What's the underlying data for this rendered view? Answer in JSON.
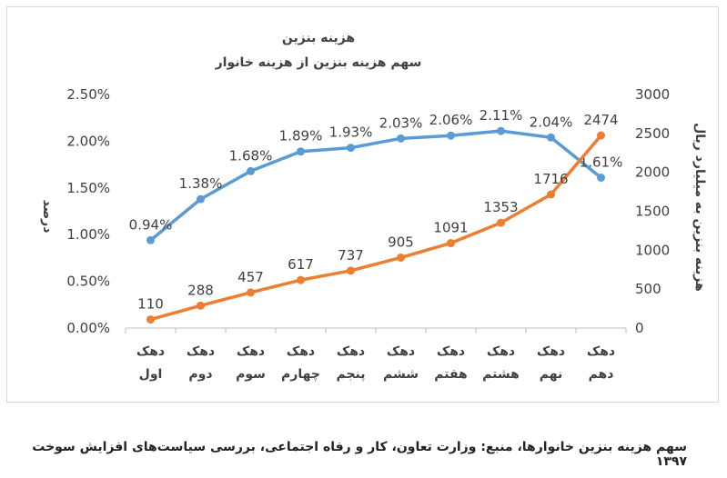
{
  "caption": "سهم هزینه بنزین خانوارها، منبع: وزارت تعاون، کار و رفاه اجتماعی، بررسی سیاست‌های افزایش سوخت ۱۳۹۷",
  "chart_data": {
    "type": "line",
    "title": "هزینه بنزین",
    "subtitle": "سهم هزینه بنزین از هزینه خانوار",
    "categories": [
      [
        "دهک",
        "اول"
      ],
      [
        "دهک",
        "دوم"
      ],
      [
        "دهک",
        "سوم"
      ],
      [
        "دهک",
        "چهارم"
      ],
      [
        "دهک",
        "پنجم"
      ],
      [
        "دهک",
        "ششم"
      ],
      [
        "دهک",
        "هفتم"
      ],
      [
        "دهک",
        "هشتم"
      ],
      [
        "دهک",
        "نهم"
      ],
      [
        "دهک",
        "دهم"
      ]
    ],
    "y_left": {
      "label": "درصد",
      "range": [
        0,
        0.025
      ],
      "ticks": [
        "0.00%",
        "0.50%",
        "1.00%",
        "1.50%",
        "2.00%",
        "2.50%"
      ],
      "tick_values": [
        0,
        0.005,
        0.01,
        0.015,
        0.02,
        0.025
      ]
    },
    "y_right": {
      "label": "هزینه بنزین به میلیارد ریال",
      "range": [
        0,
        3000
      ],
      "ticks": [
        "0",
        "500",
        "1000",
        "1500",
        "2000",
        "2500",
        "3000"
      ],
      "tick_values": [
        0,
        500,
        1000,
        1500,
        2000,
        2500,
        3000
      ]
    },
    "series": [
      {
        "name": "سهم هزینه بنزین",
        "axis": "left",
        "color": "#5b9bd5",
        "values": [
          0.0094,
          0.0138,
          0.0168,
          0.0189,
          0.0193,
          0.0203,
          0.0206,
          0.0211,
          0.0204,
          0.0161
        ],
        "labels": [
          "0.94%",
          "1.38%",
          "1.68%",
          "1.89%",
          "1.93%",
          "2.03%",
          "2.06%",
          "2.11%",
          "2.04%",
          "1.61%"
        ]
      },
      {
        "name": "هزینه بنزین",
        "axis": "right",
        "color": "#ed7d31",
        "values": [
          110,
          288,
          457,
          617,
          737,
          905,
          1091,
          1353,
          1716,
          2474
        ],
        "labels": [
          "110",
          "288",
          "457",
          "617",
          "737",
          "905",
          "1091",
          "1353",
          "1716",
          "2474"
        ]
      }
    ],
    "grid": false,
    "legend": "none"
  }
}
